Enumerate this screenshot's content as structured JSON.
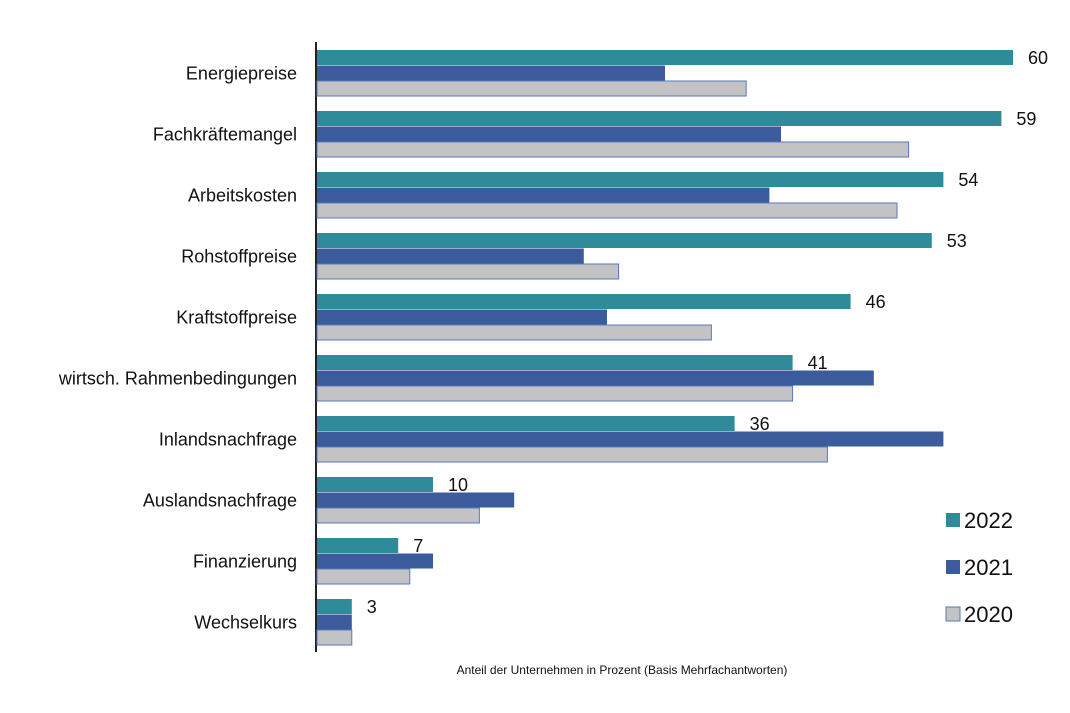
{
  "chart_data": {
    "type": "bar",
    "orientation": "horizontal",
    "xlabel": "Anteil der Unternehmen in Prozent (Basis Mehrfachantworten)",
    "categories": [
      "Energiepreise",
      "Fachkräftemangel",
      "Arbeitskosten",
      "Rohstoffpreise",
      "Kraftstoffpreise",
      "wirtsch. Rahmenbedingungen",
      "Inlandsnachfrage",
      "Auslandsnachfrage",
      "Finanzierung",
      "Wechselkurs"
    ],
    "series": [
      {
        "name": "2022",
        "color": "#2f8a99",
        "values": [
          60,
          59,
          54,
          53,
          46,
          41,
          36,
          10,
          7,
          3
        ]
      },
      {
        "name": "2021",
        "color": "#3b5b9c",
        "values": [
          30,
          40,
          39,
          23,
          25,
          48,
          54,
          17,
          10,
          3
        ]
      },
      {
        "name": "2020",
        "color": "#c3c3c6",
        "values": [
          37,
          51,
          50,
          26,
          34,
          41,
          44,
          14,
          8,
          3
        ]
      }
    ],
    "data_labels_series": "2022",
    "xlim": [
      0,
      60
    ],
    "grid": false,
    "legend": "bottom-right"
  }
}
